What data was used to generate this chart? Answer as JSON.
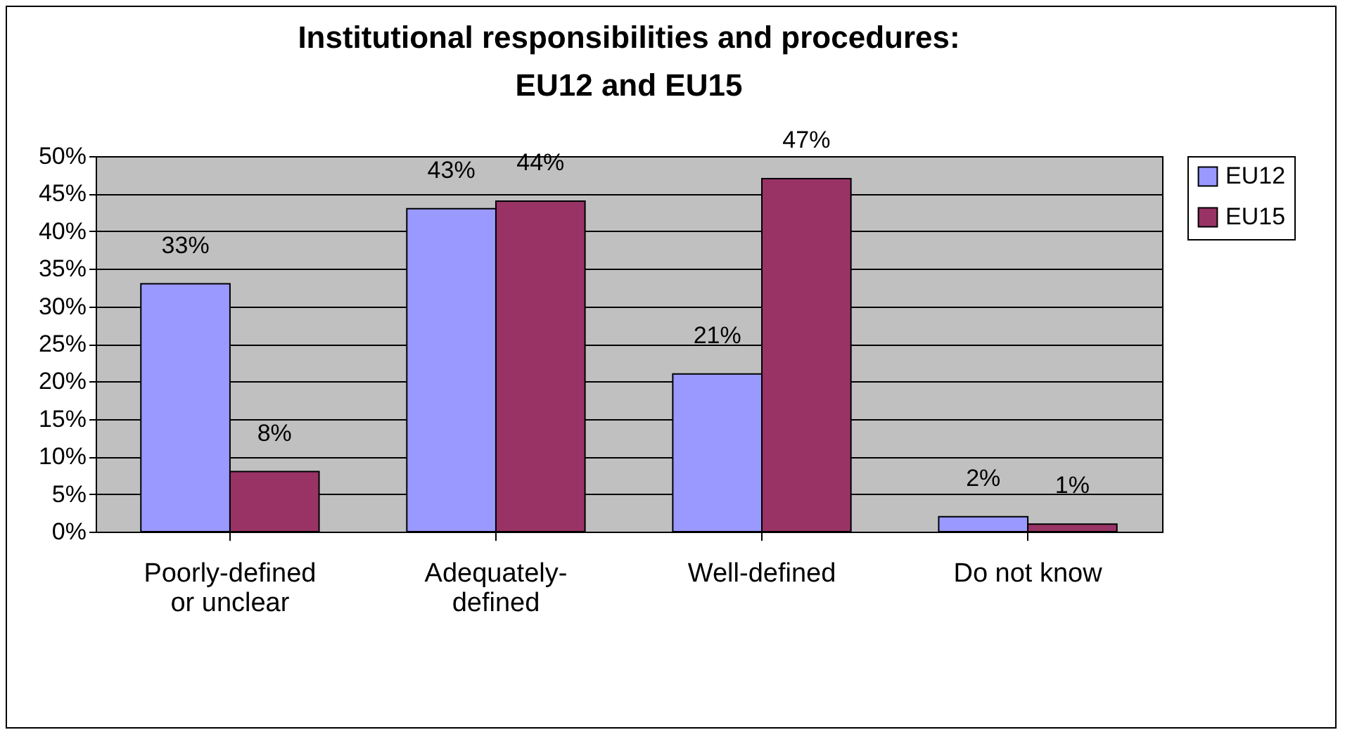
{
  "chart_data": {
    "type": "bar",
    "title": "Institutional responsibilities and procedures: EU12 and EU15",
    "categories": [
      "Poorly-defined or unclear",
      "Adequately-defined",
      "Well-defined",
      "Do not know"
    ],
    "series": [
      {
        "name": "EU12",
        "color": "#9999ff",
        "values": [
          33,
          43,
          21,
          2
        ],
        "value_labels": [
          "33%",
          "43%",
          "21%",
          "2%"
        ]
      },
      {
        "name": "EU15",
        "color": "#993366",
        "values": [
          8,
          44,
          47,
          1
        ],
        "value_labels": [
          "8%",
          "44%",
          "47%",
          "1%"
        ]
      }
    ],
    "ylim": [
      0,
      50
    ],
    "yticks": [
      {
        "value": 0,
        "label": "0%"
      },
      {
        "value": 5,
        "label": "5%"
      },
      {
        "value": 10,
        "label": "10%"
      },
      {
        "value": 15,
        "label": "15%"
      },
      {
        "value": 20,
        "label": "20%"
      },
      {
        "value": 25,
        "label": "25%"
      },
      {
        "value": 30,
        "label": "30%"
      },
      {
        "value": 35,
        "label": "35%"
      },
      {
        "value": 40,
        "label": "40%"
      },
      {
        "value": 45,
        "label": "45%"
      },
      {
        "value": 50,
        "label": "50%"
      }
    ],
    "grid": "y",
    "legend": "right"
  }
}
